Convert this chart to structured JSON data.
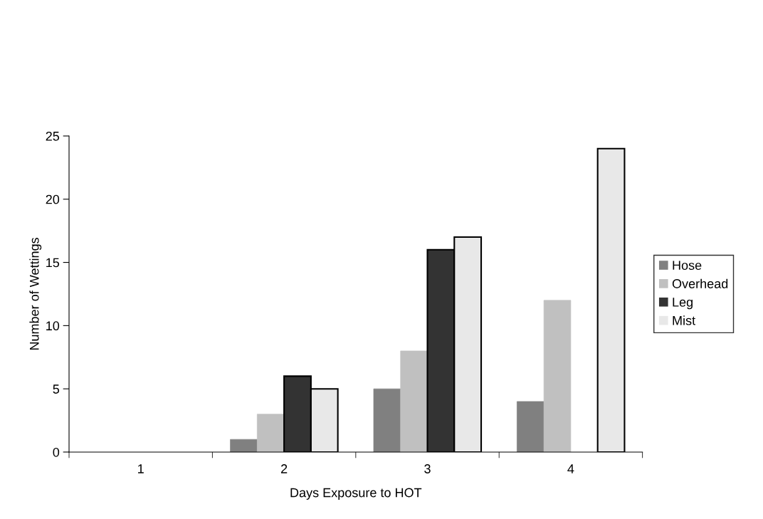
{
  "chart_data": {
    "type": "bar",
    "xlabel": "Days Exposure to HOT",
    "ylabel": "Number of Wettings",
    "categories": [
      "1",
      "2",
      "3",
      "4"
    ],
    "series": [
      {
        "name": "Hose",
        "color": "#808080",
        "values": [
          0,
          1,
          5,
          4
        ]
      },
      {
        "name": "Overhead",
        "color": "#c0c0c0",
        "values": [
          0,
          3,
          8,
          12
        ]
      },
      {
        "name": "Leg",
        "color": "#333333",
        "values": [
          0,
          6,
          16,
          0
        ]
      },
      {
        "name": "Mist",
        "color": "#e8e8e8",
        "values": [
          0,
          5,
          17,
          24
        ]
      }
    ],
    "ylim": [
      0,
      25
    ],
    "yticks": [
      0,
      5,
      10,
      15,
      20,
      25
    ],
    "grid": false,
    "legend": "right"
  }
}
